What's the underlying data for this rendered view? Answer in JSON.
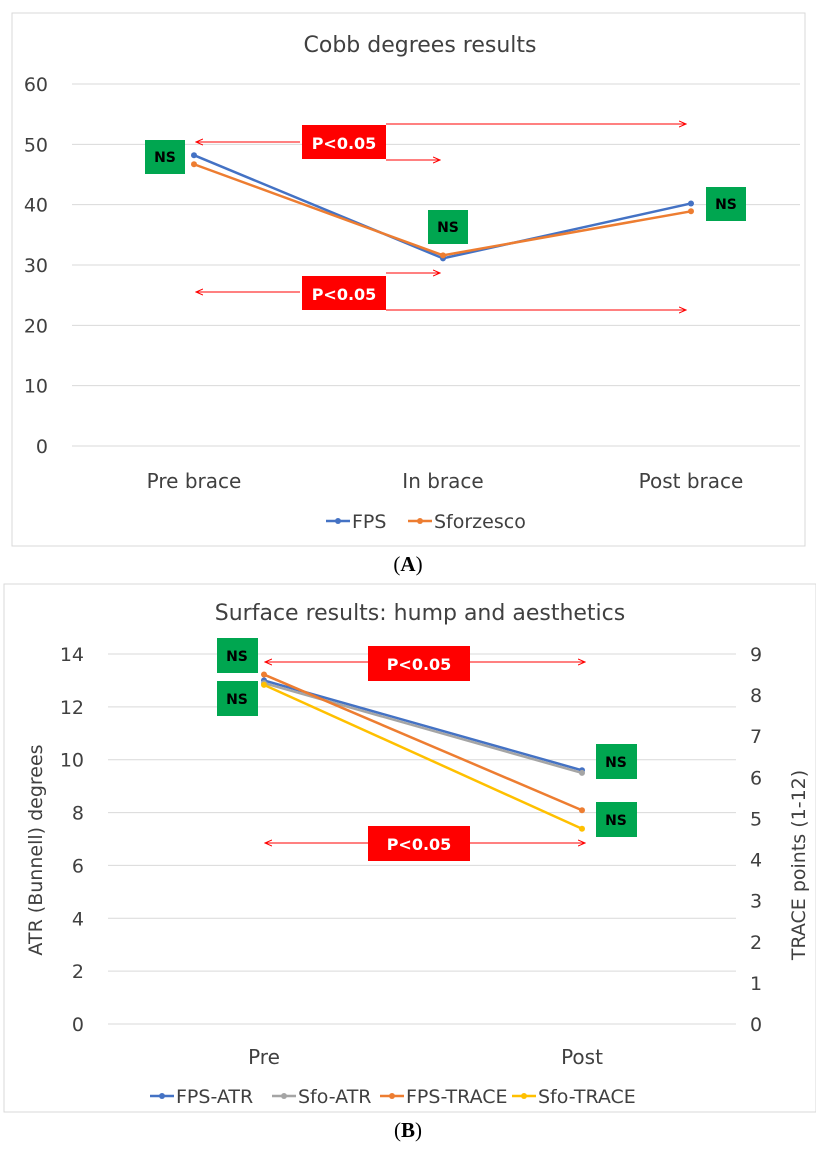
{
  "captions": {
    "a_letter": "A",
    "b_letter": "B"
  },
  "chart_data": [
    {
      "type": "line",
      "title": "Cobb degrees results",
      "categories": [
        "Pre brace",
        "In brace",
        "Post brace"
      ],
      "ylim": [
        0,
        60
      ],
      "yticks": [
        "0",
        "10",
        "20",
        "30",
        "40",
        "50",
        "60"
      ],
      "grid": true,
      "legend_position": "bottom",
      "series": [
        {
          "name": "FPS",
          "color": "#4472c4",
          "values": [
            48.2,
            31.1,
            40.2
          ]
        },
        {
          "name": "Sforzesco",
          "color": "#ed7d31",
          "values": [
            46.7,
            31.6,
            38.9
          ]
        }
      ],
      "annotations": {
        "ns_label": "NS",
        "p_label": "P<0.05",
        "ns_color": "#00a650",
        "p_color": "#ff0000"
      }
    },
    {
      "type": "line",
      "title": "Surface results: hump and aesthetics",
      "categories": [
        "Pre",
        "Post"
      ],
      "ylabel": "ATR (Bunnell) degrees",
      "ylim": [
        0,
        14
      ],
      "yticks": [
        "0",
        "2",
        "4",
        "6",
        "8",
        "10",
        "12",
        "14"
      ],
      "y2label": "TRACE points (1-12)",
      "y2lim": [
        0,
        9
      ],
      "y2ticks": [
        "0",
        "1",
        "2",
        "3",
        "4",
        "5",
        "6",
        "7",
        "8",
        "9"
      ],
      "grid": true,
      "legend_position": "bottom",
      "series": [
        {
          "name": "FPS-ATR",
          "color": "#4472c4",
          "axis": "left",
          "values": [
            13.0,
            9.6
          ]
        },
        {
          "name": "Sfo-ATR",
          "color": "#a5a5a5",
          "axis": "left",
          "values": [
            12.9,
            9.5
          ]
        },
        {
          "name": "FPS-TRACE",
          "color": "#ed7d31",
          "axis": "right",
          "values": [
            8.5,
            5.2
          ]
        },
        {
          "name": "Sfo-TRACE",
          "color": "#ffc000",
          "axis": "right",
          "values": [
            8.25,
            4.75
          ]
        }
      ],
      "annotations": {
        "ns_label": "NS",
        "p_label": "P<0.05",
        "ns_color": "#00a650",
        "p_color": "#ff0000"
      }
    }
  ]
}
